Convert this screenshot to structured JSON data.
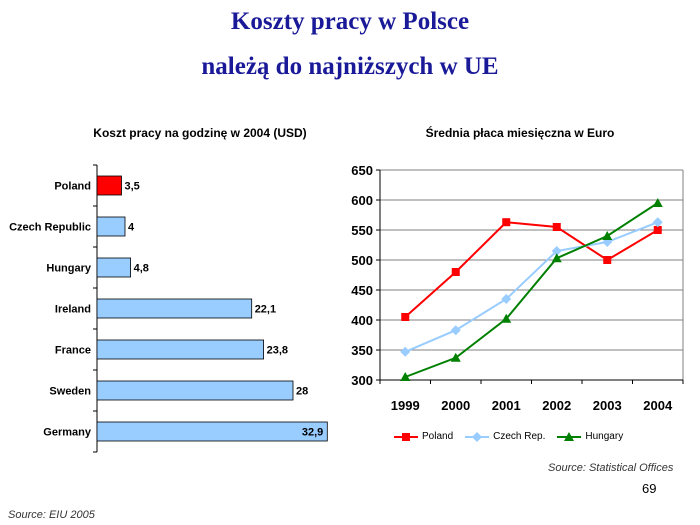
{
  "slide": {
    "title_line1": "Koszty pracy w Polsce",
    "title_line2": "należą do najniższych w UE",
    "page_number": "69",
    "source_left": "Source: EIU 2005",
    "source_right": "Source: Statistical Offices"
  },
  "chart_data": [
    {
      "type": "bar",
      "orientation": "horizontal",
      "title": "Koszt pracy na godzinę w 2004 (USD)",
      "categories": [
        "Poland",
        "Czech Republic",
        "Hungary",
        "Ireland",
        "France",
        "Sweden",
        "Germany"
      ],
      "values": [
        3.5,
        4,
        4.8,
        22.1,
        23.8,
        28,
        32.9
      ],
      "value_labels": [
        "3,5",
        "4",
        "4,8",
        "22,1",
        "23,8",
        "28",
        "32,9"
      ],
      "xlim": [
        0,
        35
      ],
      "bar_colors": [
        "#ff0000",
        "#99ccff",
        "#99ccff",
        "#99ccff",
        "#99ccff",
        "#99ccff",
        "#99ccff"
      ]
    },
    {
      "type": "line",
      "title": "Średnia płaca miesięczna w Euro",
      "x": [
        "1999",
        "2000",
        "2001",
        "2002",
        "2003",
        "2004"
      ],
      "ylim": [
        300,
        650
      ],
      "yticks": [
        "300",
        "350",
        "400",
        "450",
        "500",
        "550",
        "600",
        "650"
      ],
      "grid": true,
      "legend_position": "bottom",
      "series": [
        {
          "name": "Poland",
          "values": [
            405,
            480,
            563,
            555,
            500,
            550
          ],
          "color": "#ff0000",
          "marker": "square"
        },
        {
          "name": "Czech Rep.",
          "values": [
            347,
            383,
            435,
            515,
            530,
            563
          ],
          "color": "#99ccff",
          "marker": "diamond"
        },
        {
          "name": "Hungary",
          "values": [
            305,
            337,
            402,
            503,
            540,
            595
          ],
          "color": "#008000",
          "marker": "triangle"
        }
      ]
    }
  ]
}
